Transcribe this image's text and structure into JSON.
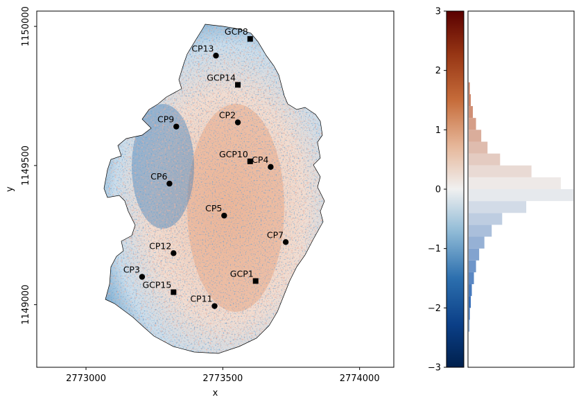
{
  "chart_data": [
    {
      "type": "scatter",
      "title": "",
      "xlabel": "x",
      "ylabel": "y",
      "xlim": [
        2772820,
        2774125
      ],
      "ylim": [
        1148775,
        1150055
      ],
      "xticks": [
        2773000,
        2773500,
        2774000
      ],
      "xtick_labels": [
        "2773000",
        "2773500",
        "2774000"
      ],
      "yticks": [
        1149000,
        1149500,
        1150000
      ],
      "ytick_labels": [
        "1149000",
        "1149500",
        "1150000"
      ],
      "background": "raster map of differences, diverging colormap (blue negative, red positive), clipped to an outline polygon",
      "series": [
        {
          "marker": "circle",
          "points": [
            {
              "label": "CP13",
              "x": 2773475,
              "y": 1149895
            },
            {
              "label": "CP2",
              "x": 2773555,
              "y": 1149655
            },
            {
              "label": "CP9",
              "x": 2773330,
              "y": 1149640
            },
            {
              "label": "CP4",
              "x": 2773675,
              "y": 1149495
            },
            {
              "label": "CP6",
              "x": 2773305,
              "y": 1149435
            },
            {
              "label": "CP5",
              "x": 2773505,
              "y": 1149320
            },
            {
              "label": "CP7",
              "x": 2773730,
              "y": 1149225
            },
            {
              "label": "CP12",
              "x": 2773320,
              "y": 1149185
            },
            {
              "label": "CP3",
              "x": 2773205,
              "y": 1149100
            },
            {
              "label": "CP11",
              "x": 2773470,
              "y": 1148995
            }
          ]
        },
        {
          "marker": "square",
          "points": [
            {
              "label": "GCP8",
              "x": 2773600,
              "y": 1149955
            },
            {
              "label": "GCP14",
              "x": 2773555,
              "y": 1149790
            },
            {
              "label": "GCP10",
              "x": 2773600,
              "y": 1149515
            },
            {
              "label": "GCP1",
              "x": 2773620,
              "y": 1149085
            },
            {
              "label": "GCP15",
              "x": 2773320,
              "y": 1149045
            }
          ]
        }
      ]
    },
    {
      "type": "colorbar",
      "ylim": [
        -3,
        3
      ],
      "yticks": [
        3,
        2,
        1,
        0,
        -1,
        -2,
        -3
      ],
      "ytick_labels": [
        "3",
        "2",
        "1",
        "0",
        "−1",
        "−2",
        "−3"
      ],
      "colors": {
        "low": "#00204d",
        "mid": "#f0f0f0",
        "high": "#5a0000"
      }
    },
    {
      "type": "bar",
      "orientation": "horizontal",
      "description_of_distribution": "histogram of values along the colorbar scale, peaking near 0",
      "bin_centers": [
        -2.3,
        -2.1,
        -1.9,
        -1.7,
        -1.5,
        -1.3,
        -1.1,
        -0.9,
        -0.7,
        -0.5,
        -0.3,
        -0.1,
        0.1,
        0.3,
        0.5,
        0.7,
        0.9,
        1.1,
        1.3,
        1.5,
        1.7
      ],
      "values": [
        0.5,
        1,
        2,
        3,
        5,
        7,
        10,
        15,
        22,
        32,
        55,
        100,
        88,
        60,
        30,
        18,
        12,
        7,
        4,
        2,
        1
      ]
    }
  ]
}
